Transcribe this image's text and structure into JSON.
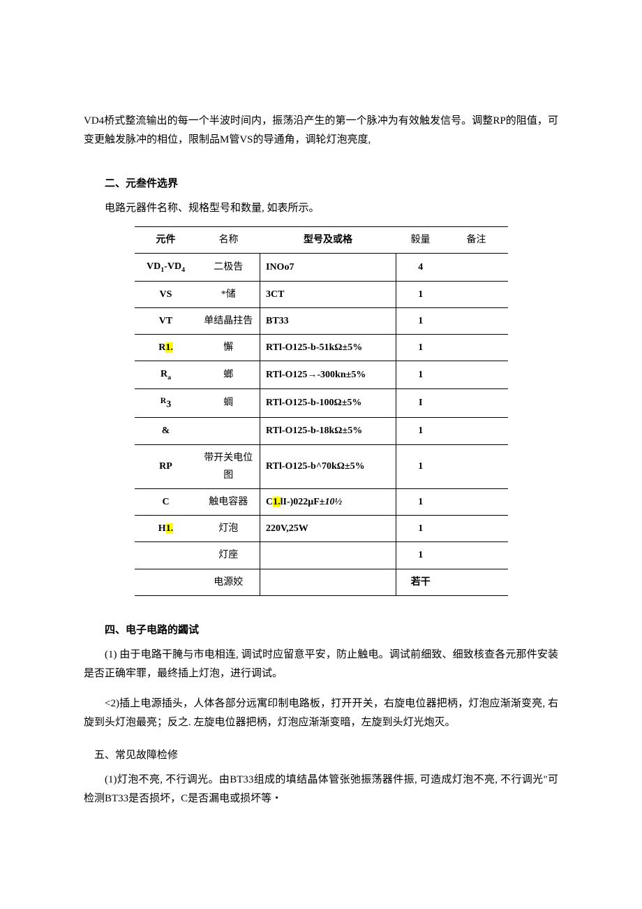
{
  "intro": "VD4桥式整流输出的每一个半波时间内，振荡沿产生的第一个脉冲为有效触发信号。调整RP的阻值，可变更触发脉冲的相位，限制品M管VS的导通角，调轮灯泡亮度,",
  "section2_title": "二、元叁件选界",
  "section2_intro": "电路元器件名称、规格型号和数量, 如表所示。",
  "table": {
    "headers": {
      "comp": "元件",
      "name": "名称",
      "model": "型号及或格",
      "qty": "毅量",
      "note": "备注"
    },
    "rows": [
      {
        "comp_html": "VD<sub>1</sub>-VD<sub>4</sub>",
        "name": "二极告",
        "model": "INOo7",
        "qty": "4",
        "note": ""
      },
      {
        "comp_html": "VS",
        "name": "*储",
        "model": "3CT",
        "qty": "1",
        "note": ""
      },
      {
        "comp_html": "VT",
        "name": "单结晶拄告",
        "model": "BT33",
        "qty": "1",
        "note": ""
      },
      {
        "comp_html": "R<span class=\"hl\">1.</span>",
        "name": "懈",
        "model": "RTl-O125-b-51kΩ±5%",
        "qty": "1",
        "note": ""
      },
      {
        "comp_html": "R<sub>a</sub>",
        "name": "螂",
        "model": "RTl-O125→-300kn±5%",
        "qty": "1",
        "note": ""
      },
      {
        "comp_html": "<sup>R</sup>3",
        "name": "蜩",
        "model": "RTl-O125-b-100Ω±5%",
        "qty": "I",
        "note": ""
      },
      {
        "comp_html": "&amp;",
        "name": "",
        "model": "RTl-O125-b-18kΩ±5%",
        "qty": "1",
        "note": ""
      },
      {
        "comp_html": "RP",
        "name": "带开关电位图",
        "model": "RTl-O125-b^70kΩ±5%",
        "qty": "1",
        "note": ""
      },
      {
        "comp_html": "C",
        "name": "触电容器",
        "model": "C<span class=\"hl\">1.</span>lI-)022μF±<span class=\"italic-part\">10½</span>",
        "qty": "1",
        "note": ""
      },
      {
        "comp_html": "H<span class=\"hl\">1.</span>",
        "name": "灯泡",
        "model": "220V,25W",
        "qty": "1",
        "note": ""
      },
      {
        "comp_html": "",
        "name": "灯座",
        "model": "",
        "qty": "1",
        "note": ""
      },
      {
        "comp_html": "",
        "name": "电源姣",
        "model": "",
        "qty": "若干",
        "note": ""
      }
    ]
  },
  "section4_title": "四、电子电路的蠲试",
  "section4_p1": "(1) 由于电路干腌与市电相连, 调试时应留意平安，防止触电。调试前细致、细致核查各元那件安装是否正确牢罪，最终插上灯泡，进行调试。",
  "section4_p2": "<2)插上电源插头，人体各部分远寓印制电路板，打开开关，右旋电位器把柄，灯泡应渐渐变亮, 右旋到头灯泡最亮；反之. 左旋电位器把柄，灯泡应渐渐变暗，左旋到头灯光炮灭。",
  "section5_title": "五、常见故障检修",
  "section5_p1": "(1)灯泡不亮, 不行调光。由BT33组成的填结晶体管张弛振荡器件振, 可造成灯泡不亮, 不行调光\"可检测BT33是否损坏，C是否漏电或损坏等・"
}
